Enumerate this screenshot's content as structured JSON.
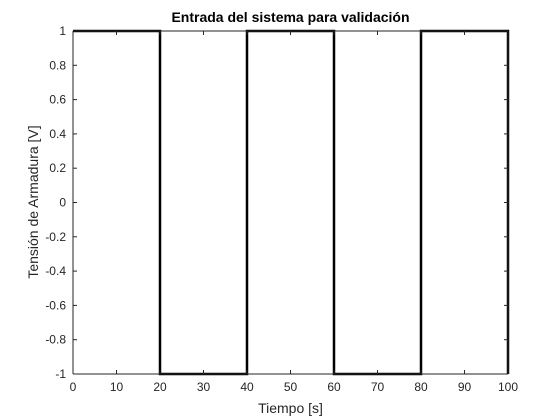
{
  "chart_data": {
    "type": "line",
    "title": "Entrada del sistema para validación",
    "xlabel": "Tiempo [s]",
    "ylabel": "Tensión de Armadura [V]",
    "xlim": [
      0,
      100
    ],
    "ylim": [
      -1,
      1
    ],
    "xticks": [
      0,
      10,
      20,
      30,
      40,
      50,
      60,
      70,
      80,
      90,
      100
    ],
    "xtick_labels": [
      "0",
      "10",
      "20",
      "30",
      "40",
      "50",
      "60",
      "70",
      "80",
      "90",
      "100"
    ],
    "yticks": [
      -1,
      -0.8,
      -0.6,
      -0.4,
      -0.2,
      0,
      0.2,
      0.4,
      0.6,
      0.8,
      1
    ],
    "ytick_labels": [
      "-1",
      "-0.8",
      "-0.6",
      "-0.4",
      "-0.2",
      "0",
      "0.2",
      "0.4",
      "0.6",
      "0.8",
      "1"
    ],
    "grid": false,
    "series": [
      {
        "color": "#000000",
        "x": [
          0,
          20,
          20,
          40,
          40,
          60,
          60,
          80,
          80,
          100,
          100
        ],
        "y": [
          1,
          1,
          -1,
          -1,
          1,
          1,
          -1,
          -1,
          1,
          1,
          -1
        ]
      }
    ]
  }
}
